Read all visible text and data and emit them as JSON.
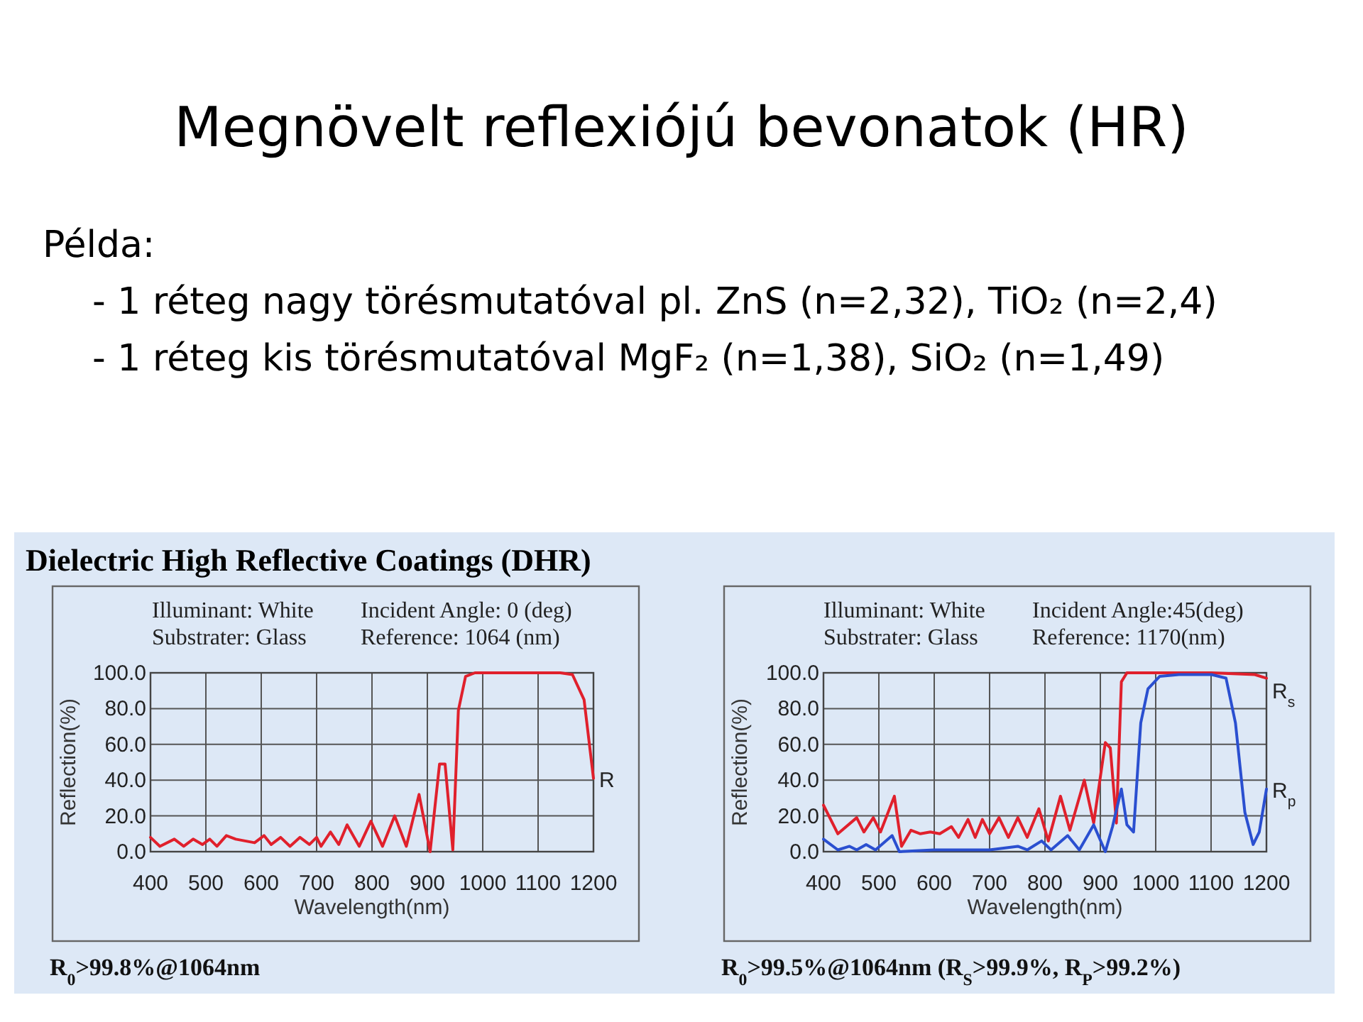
{
  "chart_data": [
    {
      "type": "other",
      "title": "Megnövelt reflexiójú bevonatok (HR)",
      "annotations": [
        "Példa:",
        "- 1 réteg nagy törésmutatóval pl. ZnS (n=2,32), TiO₂ (n=2,4)",
        "- 1 réteg kis törésmutatóval MgF₂ (n=1,38), SiO₂ (n=1,49)"
      ]
    },
    {
      "type": "line",
      "title": "Dielectric High Reflective Coatings (DHR)",
      "xlabel": "Wavelength(nm)",
      "ylabel": "Reflection(%)",
      "xlim": [
        400,
        1200
      ],
      "ylim": [
        0,
        100
      ],
      "xticks": [
        400,
        500,
        600,
        700,
        800,
        900,
        1000,
        1100,
        1200
      ],
      "yticks": [
        {
          "value": 0,
          "label": "0.0"
        },
        {
          "value": 20,
          "label": "20.0"
        },
        {
          "value": 40,
          "label": "40.0"
        },
        {
          "value": 60,
          "label": "60.0"
        },
        {
          "value": 80,
          "label": "80.0"
        },
        {
          "value": 100,
          "label": "100.0"
        }
      ],
      "grid": true,
      "annotations": [
        "Illuminant: White",
        "Substrater: Glass",
        "Incident Angle: 0 (deg)",
        "Reference: 1064 (nm)",
        "R$_{0}$>99.8%@1064nm"
      ],
      "series": [
        {
          "name": "R",
          "color": "#e0202c",
          "x": [
            400,
            417,
            443,
            460,
            477,
            494,
            507,
            520,
            537,
            554,
            571,
            588,
            605,
            618,
            635,
            652,
            670,
            687,
            700,
            708,
            725,
            740,
            755,
            777,
            798,
            819,
            841,
            862,
            885,
            905,
            922,
            932,
            946,
            956,
            969,
            986,
            1000,
            1100,
            1140,
            1162,
            1183,
            1200
          ],
          "values": [
            8,
            3,
            7,
            3,
            7,
            4,
            7,
            3,
            9,
            7,
            6,
            5,
            9,
            4,
            8,
            3,
            8,
            4,
            8,
            3,
            11,
            4,
            15,
            3,
            17,
            3,
            20,
            3,
            32,
            0,
            49,
            49,
            1,
            79,
            98,
            100,
            100,
            100,
            100,
            99,
            85,
            41
          ]
        }
      ]
    },
    {
      "type": "line",
      "xlabel": "Wavelength(nm)",
      "ylabel": "Reflection(%)",
      "xlim": [
        400,
        1200
      ],
      "ylim": [
        0,
        100
      ],
      "xticks": [
        400,
        500,
        600,
        700,
        800,
        900,
        1000,
        1100,
        1200
      ],
      "yticks": [
        {
          "value": 0,
          "label": "0.0"
        },
        {
          "value": 20,
          "label": "20.0"
        },
        {
          "value": 40,
          "label": "40.0"
        },
        {
          "value": 60,
          "label": "60.0"
        },
        {
          "value": 80,
          "label": "80.0"
        },
        {
          "value": 100,
          "label": "100.0"
        }
      ],
      "grid": true,
      "annotations": [
        "Illuminant: White",
        "Substrater: Glass",
        "Incident Angle:45(deg)",
        "Reference:  1170(nm)",
        "R$_{0}$>99.5%@1064nm    (R$_{S}$>99.9%, R$_{P}$>99.2%)"
      ],
      "series": [
        {
          "name": "R$_{s}$",
          "color": "#e0202c",
          "x": [
            400,
            426,
            460,
            473,
            490,
            503,
            528,
            541,
            558,
            575,
            593,
            610,
            631,
            644,
            661,
            674,
            687,
            700,
            717,
            734,
            751,
            768,
            789,
            806,
            828,
            845,
            871,
            888,
            909,
            918,
            929,
            938,
            948,
            1000,
            1100,
            1179,
            1200
          ],
          "values": [
            26,
            10,
            19,
            11,
            19,
            11,
            31,
            3,
            12,
            10,
            11,
            10,
            14,
            8,
            18,
            8,
            18,
            10,
            19,
            8,
            19,
            8,
            24,
            6,
            31,
            12,
            40,
            16,
            61,
            58,
            16,
            95,
            100,
            100,
            100,
            99,
            97
          ]
        },
        {
          "name": "R$_{p}$",
          "color": "#2a4fd0",
          "x": [
            400,
            426,
            447,
            460,
            477,
            494,
            524,
            537,
            600,
            700,
            751,
            768,
            794,
            811,
            841,
            862,
            888,
            909,
            922,
            938,
            948,
            960,
            973,
            986,
            1007,
            1042,
            1101,
            1127,
            1144,
            1161,
            1176,
            1187,
            1200
          ],
          "values": [
            7,
            1,
            3,
            1,
            4,
            1,
            9,
            0,
            1,
            1,
            3,
            1,
            6,
            1,
            9,
            1,
            15,
            0,
            14,
            35,
            15,
            11,
            72,
            91,
            98,
            99,
            99,
            97,
            72,
            22,
            4,
            11,
            35
          ]
        }
      ]
    }
  ]
}
